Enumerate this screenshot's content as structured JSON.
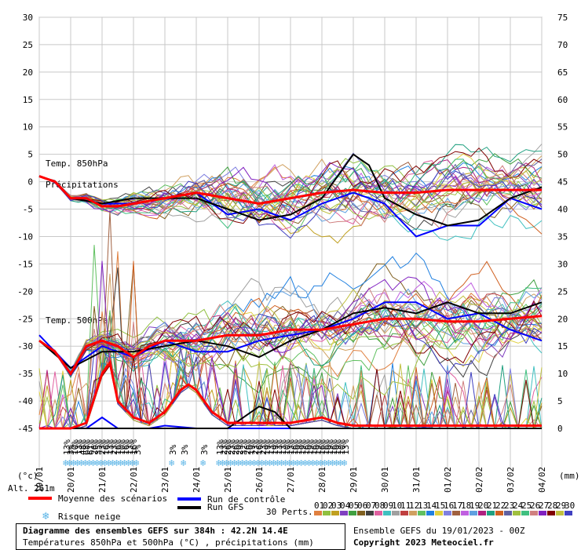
{
  "chart_data": {
    "type": "line",
    "title": "Diagramme des ensembles GEFS sur 384h : 42.2N 14.4E",
    "subtitle": "Températures 850hPa et 500hPa (°C) , précipitations (mm)",
    "run_info": "Ensemble GEFS du 19/01/2023 - 00Z",
    "copyright": "Copyright 2023 Meteociel.fr",
    "alt_label": "Alt. 261m",
    "unit_left": "(°c)",
    "unit_right": "(mm)",
    "label_t850": "Temp. 850hPa",
    "label_precip": "Précipitations",
    "label_t500": "Temp. 500hPa",
    "perts_label": "30 Perts.",
    "ylim_left": [
      -45,
      30
    ],
    "y_ticks_left": [
      "30",
      "25",
      "20",
      "15",
      "10",
      "5",
      "0",
      "-5",
      "-10",
      "-15",
      "-20",
      "-25",
      "-30",
      "-35",
      "-40",
      "-45"
    ],
    "ylim_right": [
      0,
      75
    ],
    "y_ticks_right": [
      "75",
      "70",
      "65",
      "60",
      "55",
      "50",
      "45",
      "40",
      "35",
      "30",
      "25",
      "20",
      "15",
      "10",
      "5",
      "0"
    ],
    "x_labels": [
      "19/01",
      "20/01",
      "21/01",
      "22/01",
      "23/01",
      "24/01",
      "25/01",
      "26/01",
      "27/01",
      "28/01",
      "29/01",
      "30/01",
      "31/01",
      "01/02",
      "02/02",
      "03/02",
      "04/02"
    ],
    "x_hours": [
      0,
      384
    ],
    "snow_risk": [
      {
        "h": 21,
        "p": "13%"
      },
      {
        "h": 24,
        "p": "3%"
      },
      {
        "h": 27,
        "p": "10%"
      },
      {
        "h": 30,
        "p": "13%"
      },
      {
        "h": 33,
        "p": "48%"
      },
      {
        "h": 36,
        "p": "68%"
      },
      {
        "h": 39,
        "p": "61%"
      },
      {
        "h": 42,
        "p": "26%"
      },
      {
        "h": 45,
        "p": "35%"
      },
      {
        "h": 48,
        "p": "23%"
      },
      {
        "h": 51,
        "p": "16%"
      },
      {
        "h": 54,
        "p": "13%"
      },
      {
        "h": 57,
        "p": "23%"
      },
      {
        "h": 60,
        "p": "16%"
      },
      {
        "h": 63,
        "p": "10%"
      },
      {
        "h": 66,
        "p": "16%"
      },
      {
        "h": 69,
        "p": "13%"
      },
      {
        "h": 72,
        "p": "16%"
      },
      {
        "h": 75,
        "p": "3%"
      },
      {
        "h": 102,
        "p": "3%"
      },
      {
        "h": 111,
        "p": "3%"
      },
      {
        "h": 126,
        "p": "3%"
      },
      {
        "h": 138,
        "p": "13%"
      },
      {
        "h": 141,
        "p": "23%"
      },
      {
        "h": 144,
        "p": "26%"
      },
      {
        "h": 147,
        "p": "23%"
      },
      {
        "h": 150,
        "p": "26%"
      },
      {
        "h": 153,
        "p": "29%"
      },
      {
        "h": 156,
        "p": "32%"
      },
      {
        "h": 159,
        "p": "26%"
      },
      {
        "h": 162,
        "p": "19%"
      },
      {
        "h": 165,
        "p": "23%"
      },
      {
        "h": 168,
        "p": "16%"
      },
      {
        "h": 171,
        "p": "23%"
      },
      {
        "h": 174,
        "p": "19%"
      },
      {
        "h": 177,
        "p": "13%"
      },
      {
        "h": 180,
        "p": "19%"
      },
      {
        "h": 183,
        "p": "13%"
      },
      {
        "h": 186,
        "p": "13%"
      },
      {
        "h": 189,
        "p": "10%"
      },
      {
        "h": 192,
        "p": "13%"
      },
      {
        "h": 195,
        "p": "16%"
      },
      {
        "h": 198,
        "p": "19%"
      },
      {
        "h": 201,
        "p": "19%"
      },
      {
        "h": 204,
        "p": "16%"
      },
      {
        "h": 207,
        "p": "19%"
      },
      {
        "h": 210,
        "p": "16%"
      },
      {
        "h": 213,
        "p": "19%"
      },
      {
        "h": 216,
        "p": "16%"
      },
      {
        "h": 219,
        "p": "16%"
      },
      {
        "h": 222,
        "p": "19%"
      },
      {
        "h": 225,
        "p": "16%"
      },
      {
        "h": 228,
        "p": "19%"
      },
      {
        "h": 231,
        "p": "10%"
      },
      {
        "h": 234,
        "p": "13%"
      }
    ],
    "series": [
      {
        "name": "Moyenne des scénarios",
        "color": "#ff0000",
        "t850": [
          [
            0,
            1
          ],
          [
            12,
            0
          ],
          [
            24,
            -3
          ],
          [
            36,
            -3
          ],
          [
            48,
            -4.5
          ],
          [
            60,
            -4.5
          ],
          [
            72,
            -4
          ],
          [
            84,
            -3.5
          ],
          [
            96,
            -3
          ],
          [
            120,
            -2
          ],
          [
            144,
            -3
          ],
          [
            168,
            -4
          ],
          [
            192,
            -3
          ],
          [
            216,
            -2
          ],
          [
            240,
            -1.5
          ],
          [
            264,
            -2
          ],
          [
            288,
            -2
          ],
          [
            312,
            -1.5
          ],
          [
            336,
            -1.5
          ],
          [
            360,
            -1.5
          ],
          [
            384,
            -1.5
          ]
        ],
        "t500": [
          [
            0,
            -29
          ],
          [
            12,
            -31
          ],
          [
            24,
            -35
          ],
          [
            36,
            -30
          ],
          [
            48,
            -29
          ],
          [
            60,
            -30
          ],
          [
            72,
            -32
          ],
          [
            84,
            -30
          ],
          [
            96,
            -29
          ],
          [
            120,
            -29
          ],
          [
            144,
            -28
          ],
          [
            168,
            -28
          ],
          [
            192,
            -27
          ],
          [
            216,
            -27
          ],
          [
            240,
            -26
          ],
          [
            264,
            -25
          ],
          [
            288,
            -25
          ],
          [
            312,
            -25.5
          ],
          [
            336,
            -25.5
          ],
          [
            360,
            -25
          ],
          [
            384,
            -24.5
          ]
        ],
        "precip": [
          [
            0,
            0
          ],
          [
            24,
            0
          ],
          [
            36,
            1
          ],
          [
            48,
            10
          ],
          [
            54,
            12
          ],
          [
            60,
            5
          ],
          [
            72,
            2
          ],
          [
            84,
            1
          ],
          [
            96,
            3
          ],
          [
            108,
            7
          ],
          [
            114,
            8
          ],
          [
            120,
            7
          ],
          [
            132,
            3
          ],
          [
            144,
            1
          ],
          [
            168,
            1
          ],
          [
            192,
            1
          ],
          [
            216,
            2
          ],
          [
            228,
            1
          ],
          [
            240,
            0.5
          ],
          [
            264,
            0.5
          ],
          [
            288,
            0.5
          ],
          [
            312,
            0.5
          ],
          [
            336,
            0.5
          ],
          [
            360,
            0.5
          ],
          [
            384,
            0.5
          ]
        ]
      },
      {
        "name": "Run de contrôle",
        "color": "#0000ff",
        "t850": [
          [
            0,
            1
          ],
          [
            12,
            0
          ],
          [
            24,
            -3
          ],
          [
            48,
            -4
          ],
          [
            72,
            -4
          ],
          [
            96,
            -3
          ],
          [
            120,
            -2
          ],
          [
            144,
            -6
          ],
          [
            168,
            -5
          ],
          [
            192,
            -7
          ],
          [
            216,
            -4
          ],
          [
            240,
            -2
          ],
          [
            264,
            -4
          ],
          [
            288,
            -10
          ],
          [
            312,
            -8
          ],
          [
            336,
            -8
          ],
          [
            360,
            -3
          ],
          [
            384,
            -5
          ]
        ],
        "t500": [
          [
            0,
            -28
          ],
          [
            24,
            -34
          ],
          [
            48,
            -30
          ],
          [
            72,
            -32
          ],
          [
            96,
            -29
          ],
          [
            120,
            -31
          ],
          [
            144,
            -31
          ],
          [
            168,
            -29
          ],
          [
            192,
            -28
          ],
          [
            216,
            -27
          ],
          [
            240,
            -25
          ],
          [
            264,
            -22
          ],
          [
            288,
            -22
          ],
          [
            312,
            -25
          ],
          [
            336,
            -24
          ],
          [
            360,
            -27
          ],
          [
            384,
            -29
          ]
        ],
        "precip": [
          [
            0,
            0
          ],
          [
            36,
            0
          ],
          [
            48,
            2
          ],
          [
            60,
            0
          ],
          [
            84,
            0
          ],
          [
            96,
            0.5
          ],
          [
            120,
            0
          ],
          [
            168,
            0
          ],
          [
            192,
            0
          ],
          [
            240,
            0
          ],
          [
            384,
            0
          ]
        ]
      },
      {
        "name": "Run GFS",
        "color": "#000000",
        "t850": [
          [
            0,
            1
          ],
          [
            12,
            0
          ],
          [
            24,
            -3
          ],
          [
            48,
            -4
          ],
          [
            72,
            -3
          ],
          [
            96,
            -3
          ],
          [
            120,
            -3
          ],
          [
            144,
            -5
          ],
          [
            168,
            -7
          ],
          [
            192,
            -6
          ],
          [
            216,
            -3
          ],
          [
            228,
            1
          ],
          [
            240,
            5
          ],
          [
            252,
            3
          ],
          [
            264,
            -3
          ],
          [
            288,
            -6
          ],
          [
            312,
            -8
          ],
          [
            336,
            -7
          ],
          [
            360,
            -3
          ],
          [
            384,
            -1
          ]
        ],
        "t500": [
          [
            0,
            -29
          ],
          [
            24,
            -34
          ],
          [
            48,
            -31
          ],
          [
            72,
            -31
          ],
          [
            96,
            -30
          ],
          [
            120,
            -29
          ],
          [
            144,
            -30
          ],
          [
            168,
            -32
          ],
          [
            192,
            -29
          ],
          [
            216,
            -27
          ],
          [
            240,
            -24
          ],
          [
            264,
            -23
          ],
          [
            288,
            -24
          ],
          [
            312,
            -22
          ],
          [
            336,
            -24
          ],
          [
            360,
            -24
          ],
          [
            384,
            -22
          ]
        ],
        "precip": [
          [
            0,
            0
          ],
          [
            48,
            0
          ],
          [
            96,
            0
          ],
          [
            144,
            0
          ],
          [
            168,
            4
          ],
          [
            180,
            3
          ],
          [
            192,
            0
          ],
          [
            384,
            0
          ]
        ]
      }
    ],
    "member_count": 30,
    "member_labels": [
      "01",
      "02",
      "03",
      "04",
      "05",
      "06",
      "07",
      "08",
      "09",
      "10",
      "11",
      "12",
      "13",
      "14",
      "15",
      "16",
      "17",
      "18",
      "19",
      "20",
      "21",
      "22",
      "23",
      "24",
      "25",
      "26",
      "27",
      "28",
      "29",
      "30"
    ],
    "member_colors": [
      "#e08040",
      "#90c040",
      "#c0a020",
      "#8040c0",
      "#40a040",
      "#806020",
      "#404040",
      "#e060a0",
      "#40c0c0",
      "#a0a0a0",
      "#c04040",
      "#d0a060",
      "#60c060",
      "#2080e0",
      "#e0d040",
      "#8080e0",
      "#a06040",
      "#c060e0",
      "#60a0e0",
      "#b02080",
      "#20a080",
      "#d06020",
      "#6060a0",
      "#a0c040",
      "#40c080",
      "#d08080",
      "#8020c0",
      "#800000",
      "#c0c040",
      "#4040c0"
    ]
  },
  "legend": {
    "mean": "Moyenne des scénarios",
    "control": "Run de contrôle",
    "gfs": "Run GFS",
    "snow": "Risque neige"
  }
}
